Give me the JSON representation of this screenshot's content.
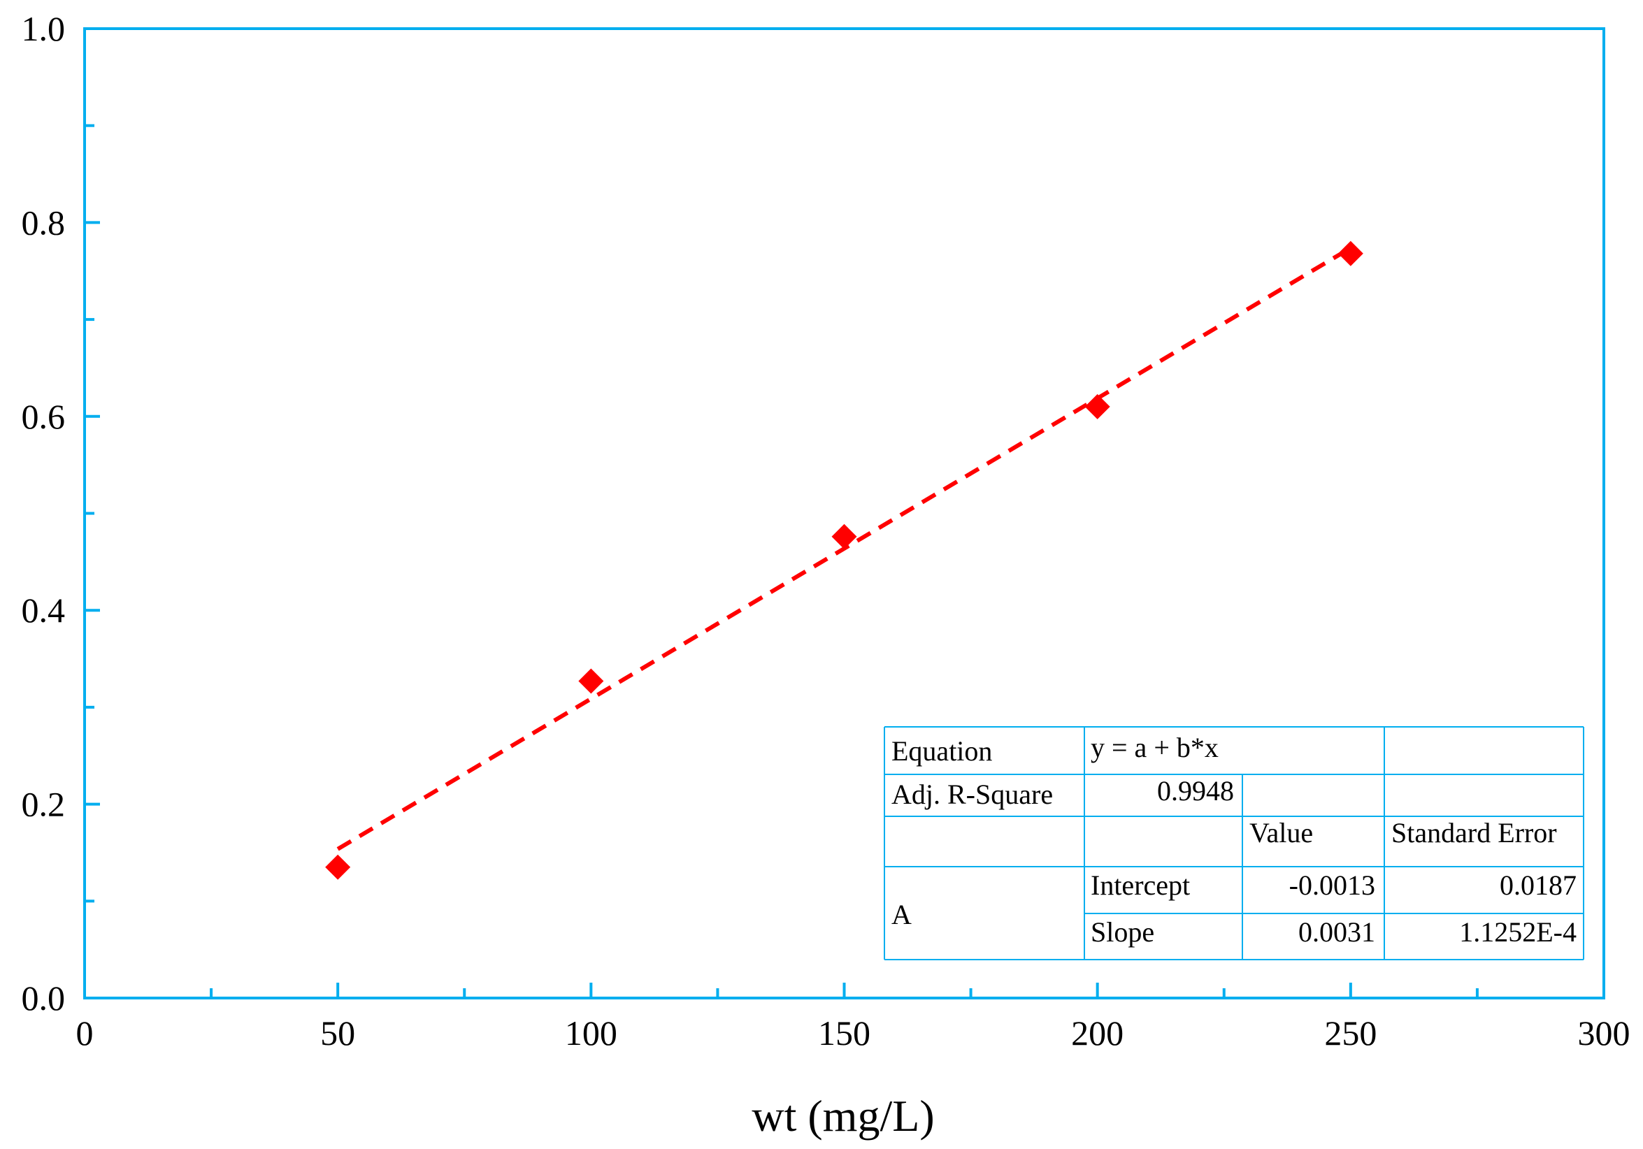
{
  "chart_data": {
    "type": "scatter",
    "title": "",
    "xlabel": "wt (mg/L)",
    "ylabel": "",
    "xlim": [
      0,
      300
    ],
    "ylim": [
      0.0,
      1.0
    ],
    "x_ticks": [
      "0",
      "50",
      "100",
      "150",
      "200",
      "250",
      "300"
    ],
    "y_ticks": [
      "0.0",
      "0.2",
      "0.4",
      "0.6",
      "0.8",
      "1.0"
    ],
    "grid": false,
    "series": [
      {
        "marker": "diamond",
        "color": "#ff0000",
        "x": [
          50,
          100,
          150,
          200,
          250
        ],
        "y": [
          0.135,
          0.327,
          0.476,
          0.61,
          0.768
        ]
      }
    ],
    "fit": {
      "style": "dashed",
      "color": "#ff0000",
      "intercept": -0.0013,
      "slope": 0.0031,
      "x_range": [
        50,
        250
      ]
    },
    "axis_color": "#00aeef",
    "fit_table": {
      "rows": [
        {
          "cells": [
            "Equation",
            "y = a + b*x",
            ""
          ]
        },
        {
          "cells": [
            "Adj. R-Square",
            "0.9948",
            "",
            ""
          ]
        },
        {
          "cells": [
            "",
            "",
            "Value",
            "Standard Error"
          ]
        },
        {
          "cells": [
            "A",
            "Intercept",
            "-0.0013",
            "0.0187"
          ]
        },
        {
          "cells": [
            "",
            "Slope",
            "0.0031",
            "1.1252E-4"
          ]
        }
      ],
      "equation_label": "Equation",
      "equation_value": "y = a + b*x",
      "r2_label": "Adj. R-Square",
      "r2_value": "0.9948",
      "value_header": "Value",
      "stderr_header": "Standard Error",
      "param_group": "A",
      "intercept_label": "Intercept",
      "intercept_value": "-0.0013",
      "intercept_stderr": "0.0187",
      "slope_label": "Slope",
      "slope_value": "0.0031",
      "slope_stderr": "1.1252E-4"
    }
  }
}
